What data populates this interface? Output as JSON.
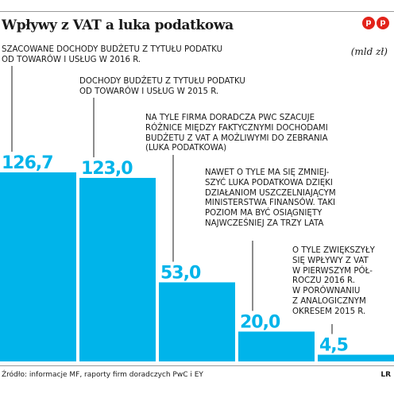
{
  "header": {
    "title": "Wpływy z VAT a luka podatkowa",
    "logo_letters": [
      "p",
      "p"
    ],
    "unit": "(mld zł)"
  },
  "colors": {
    "bar": "#00b4ea",
    "logo": "#e2231a"
  },
  "chart_data": {
    "type": "bar",
    "categories": [
      "SZACOWANE DOCHODY BUDŻETU Z TYTUŁU PODATKU\nOD TOWARÓW I USŁUG W 2016 R.",
      "DOCHODY BUDŻETU Z TYTUŁU PODATKU\nOD TOWARÓW I USŁUG W 2015 R.",
      "NA TYLE FIRMA DORADCZA PWC SZACUJE\nRÓŻNICE MIĘDZY FAKTYCZNYMI DOCHODAMI\nBUDŻETU Z VAT A MOŻLIWYMI DO ZEBRANIA\n(LUKA PODATKOWA)",
      "NAWET O TYLE MA SIĘ ZMNIEJ-\nSZYĆ LUKA PODATKOWA DZIĘKI\nDZIAŁANIOM USZCZELNIAJĄCYM\nMINISTERSTWA FINANSÓW. TAKI\nPOZIOM MA BYĆ OSIĄGNIĘTY\nNAJWCZEŚNIEJ ZA TRZY LATA",
      "O TYLE ZWIĘKSZYŁY\nSIĘ WPŁYWY Z VAT\nW PIERWSZYM PÓŁ-\nROCZU 2016 R.\nW PORÓWNANIU\nZ ANALOGICZNYM\nOKRESEM 2015 R."
    ],
    "values": [
      126.7,
      123.0,
      53.0,
      20.0,
      4.5
    ],
    "value_labels": [
      "126,7",
      "123,0",
      "53,0",
      "20,0",
      "4,5"
    ],
    "ylim": [
      0,
      126.7
    ],
    "grid": false,
    "title": "Wpływy z VAT a luka podatkowa"
  },
  "footer": {
    "source": "Źródło: informacje MF, raporty firm doradczych PwC i EY",
    "mark": "LR"
  }
}
